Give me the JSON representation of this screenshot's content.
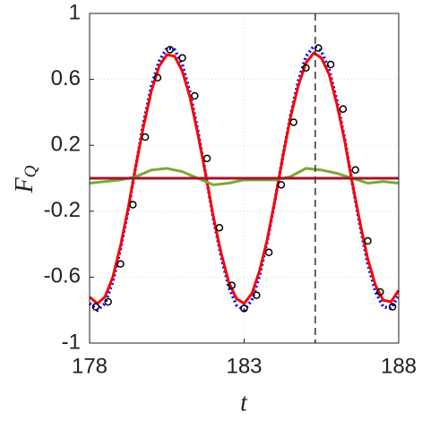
{
  "chart_data": {
    "type": "line",
    "xlabel": "t",
    "ylabel": {
      "main": "F",
      "sub": "Q"
    },
    "xlim": [
      178,
      188
    ],
    "xticks": [
      178,
      183,
      188
    ],
    "ylim": [
      -1,
      1
    ],
    "yticks": [
      1,
      0.6,
      0.2,
      -0.2,
      -0.6,
      -1
    ],
    "grid": true,
    "vline": {
      "x": 185.3,
      "color": "#333333"
    },
    "series": [
      {
        "color": "#0000ff",
        "style": "dotted",
        "x": [
          178,
          178.25,
          178.5,
          178.75,
          179,
          179.25,
          179.5,
          179.75,
          180,
          180.25,
          180.5,
          180.75,
          181,
          181.25,
          181.5,
          181.75,
          182,
          182.25,
          182.5,
          182.75,
          183,
          183.25,
          183.5,
          183.75,
          184,
          184.25,
          184.5,
          184.75,
          185,
          185.25,
          185.5,
          185.75,
          186,
          186.25,
          186.5,
          186.75,
          187,
          187.25,
          187.5,
          187.75,
          188
        ],
        "values": [
          -0.76,
          -0.8,
          -0.76,
          -0.63,
          -0.43,
          -0.19,
          0.08,
          0.34,
          0.56,
          0.71,
          0.79,
          0.78,
          0.69,
          0.52,
          0.29,
          0.03,
          -0.24,
          -0.47,
          -0.66,
          -0.77,
          -0.8,
          -0.74,
          -0.59,
          -0.38,
          -0.13,
          0.13,
          0.38,
          0.59,
          0.74,
          0.8,
          0.77,
          0.66,
          0.47,
          0.24,
          -0.03,
          -0.29,
          -0.52,
          -0.69,
          -0.78,
          -0.79,
          -0.71
        ]
      },
      {
        "color": "#ff0000",
        "style": "solid",
        "x": [
          178,
          178.25,
          178.5,
          178.75,
          179,
          179.25,
          179.5,
          179.75,
          180,
          180.25,
          180.5,
          180.75,
          181,
          181.25,
          181.5,
          181.75,
          182,
          182.25,
          182.5,
          182.75,
          183,
          183.25,
          183.5,
          183.75,
          184,
          184.25,
          184.5,
          184.75,
          185,
          185.25,
          185.5,
          185.75,
          186,
          186.25,
          186.5,
          186.75,
          187,
          187.25,
          187.5,
          187.75,
          188
        ],
        "values": [
          -0.72,
          -0.76,
          -0.72,
          -0.6,
          -0.41,
          -0.18,
          0.08,
          0.32,
          0.53,
          0.68,
          0.75,
          0.74,
          0.65,
          0.49,
          0.27,
          0.03,
          -0.23,
          -0.45,
          -0.63,
          -0.73,
          -0.76,
          -0.7,
          -0.56,
          -0.37,
          -0.13,
          0.13,
          0.37,
          0.56,
          0.7,
          0.76,
          0.73,
          0.63,
          0.45,
          0.23,
          -0.03,
          -0.27,
          -0.49,
          -0.65,
          -0.74,
          -0.75,
          -0.68
        ]
      },
      {
        "color": "#77ac30",
        "style": "solid",
        "x": [
          178,
          178.5,
          179,
          179.5,
          180,
          180.5,
          181,
          181.5,
          182,
          182.5,
          183,
          183.5,
          184,
          184.5,
          185,
          185.5,
          186,
          186.5,
          187,
          187.5,
          188
        ],
        "values": [
          -0.03,
          -0.02,
          -0.01,
          0.01,
          0.05,
          0.06,
          0.04,
          0,
          -0.04,
          -0.03,
          -0.01,
          -0.01,
          -0.01,
          0.01,
          0.06,
          0.05,
          0.03,
          0,
          -0.03,
          -0.02,
          -0.03
        ]
      },
      {
        "color": "#a2142f",
        "style": "solid",
        "x": [
          178,
          188
        ],
        "values": [
          0,
          0
        ]
      },
      {
        "color": "#000000",
        "style": "markers",
        "x": [
          178.2,
          178.6,
          179,
          179.4,
          179.8,
          180.2,
          180.6,
          181,
          181.4,
          181.8,
          182.2,
          182.6,
          183,
          183.4,
          183.8,
          184.2,
          184.6,
          185,
          185.4,
          185.8,
          186.2,
          186.6,
          187,
          187.4,
          187.8
        ],
        "values": [
          -0.78,
          -0.75,
          -0.52,
          -0.16,
          0.25,
          0.61,
          0.78,
          0.73,
          0.5,
          0.12,
          -0.3,
          -0.65,
          -0.79,
          -0.71,
          -0.45,
          -0.04,
          0.34,
          0.67,
          0.79,
          0.69,
          0.42,
          0.05,
          -0.38,
          -0.69,
          -0.78
        ]
      }
    ]
  }
}
